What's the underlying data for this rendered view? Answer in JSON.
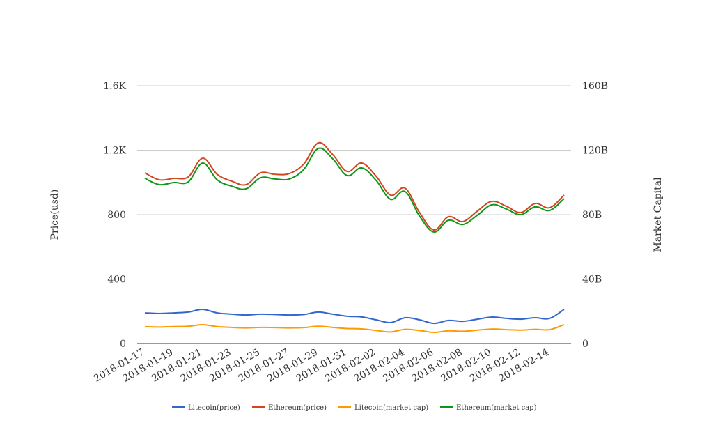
{
  "chart_data": {
    "type": "line",
    "xlabel": "",
    "ylabel": "Price(usd)",
    "y2label": "Market Capital",
    "ylim": [
      0,
      1600
    ],
    "y2lim": [
      0,
      160
    ],
    "y_ticks": [
      "0",
      "400",
      "800",
      "1.2K",
      "1.6K"
    ],
    "y2_ticks": [
      "0",
      "40B",
      "80B",
      "120B",
      "160B"
    ],
    "grid": true,
    "legend": "bottom",
    "x": [
      "2018-01-17",
      "2018-01-18",
      "2018-01-19",
      "2018-01-20",
      "2018-01-21",
      "2018-01-22",
      "2018-01-23",
      "2018-01-24",
      "2018-01-25",
      "2018-01-26",
      "2018-01-27",
      "2018-01-28",
      "2018-01-29",
      "2018-01-30",
      "2018-01-31",
      "2018-02-01",
      "2018-02-02",
      "2018-02-03",
      "2018-02-04",
      "2018-02-05",
      "2018-02-06",
      "2018-02-07",
      "2018-02-08",
      "2018-02-09",
      "2018-02-10",
      "2018-02-11",
      "2018-02-12",
      "2018-02-13",
      "2018-02-14",
      "2018-02-15"
    ],
    "x_tick_labels": [
      "2018-01-17",
      "2018-01-19",
      "2018-01-21",
      "2018-01-23",
      "2018-01-25",
      "2018-01-27",
      "2018-01-29",
      "2018-01-31",
      "2018-02-02",
      "2018-02-04",
      "2018-02-06",
      "2018-02-08",
      "2018-02-10",
      "2018-02-12",
      "2018-02-14"
    ],
    "series": [
      {
        "name": "Litecoin(price)",
        "axis": "left",
        "color": "#3366cc",
        "values": [
          190,
          186,
          190,
          195,
          212,
          190,
          182,
          177,
          182,
          180,
          177,
          180,
          195,
          182,
          169,
          165,
          147,
          130,
          160,
          147,
          125,
          143,
          138,
          151,
          164,
          156,
          151,
          160,
          156,
          212
        ]
      },
      {
        "name": "Ethereum(price)",
        "axis": "left",
        "color": "#d2461f",
        "values": [
          1059,
          1016,
          1025,
          1034,
          1150,
          1050,
          1008,
          986,
          1059,
          1050,
          1055,
          1115,
          1245,
          1172,
          1068,
          1120,
          1038,
          921,
          964,
          813,
          705,
          787,
          757,
          822,
          882,
          852,
          813,
          869,
          843,
          921
        ]
      },
      {
        "name": "Litecoin(market cap)",
        "axis": "right",
        "color": "#ff9900",
        "values": [
          10.5,
          10.2,
          10.5,
          10.7,
          11.7,
          10.5,
          10.0,
          9.7,
          10.0,
          9.9,
          9.7,
          9.9,
          10.7,
          10.0,
          9.3,
          9.1,
          8.1,
          7.2,
          8.8,
          8.1,
          6.9,
          7.9,
          7.6,
          8.3,
          9.0,
          8.6,
          8.3,
          8.8,
          8.6,
          11.7
        ]
      },
      {
        "name": "Ethereum(market cap)",
        "axis": "right",
        "color": "#109618",
        "values": [
          102.5,
          98.6,
          99.9,
          100.3,
          112.0,
          101.6,
          97.7,
          96.0,
          102.9,
          102.1,
          102.1,
          108.1,
          121.1,
          114.6,
          104.2,
          109.0,
          101.2,
          89.5,
          94.3,
          79.1,
          69.2,
          76.5,
          73.9,
          79.6,
          86.1,
          83.5,
          80.0,
          84.8,
          82.6,
          89.9
        ]
      }
    ]
  }
}
